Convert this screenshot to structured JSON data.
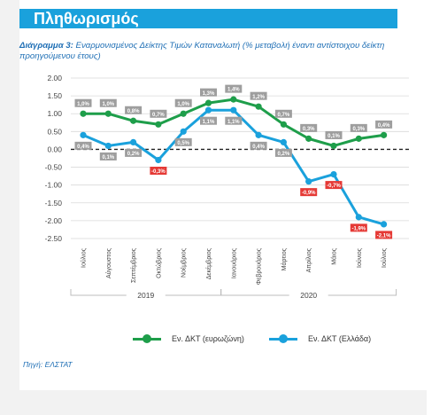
{
  "header": {
    "title": "Πληθωρισμός"
  },
  "subtitle": {
    "label": "Διάγραμμα 3:",
    "text": " Εναρμονισμένος Δείκτης Τιμών Καταναλωτή (% μεταβολή έναντι αντίστοιχου δείκτη προηγούμενου έτους)"
  },
  "source": "Πηγή: ΕΛΣΤΑΤ",
  "colors": {
    "eurozone": "#1e9e4a",
    "greece": "#1aa1dc",
    "negative_label": "#e53935",
    "label_box": "#9e9e9e"
  },
  "chart_data": {
    "type": "line",
    "categories": [
      "Ιούλιος",
      "Αύγουστος",
      "Σεπτέμβριος",
      "Οκτώβριος",
      "Νοέμβριος",
      "Δεκέμβριος",
      "Ιανουάριος",
      "Φεβρουάριος",
      "Μάρτιος",
      "Απρίλιος",
      "Μάιος",
      "Ιούνιος",
      "Ιούλιος"
    ],
    "year_groups": [
      {
        "label": "2019",
        "start": 0,
        "end": 5
      },
      {
        "label": "2020",
        "start": 6,
        "end": 12
      }
    ],
    "ylim": [
      -2.5,
      2.0
    ],
    "yticks": [
      "2.00",
      "1.50",
      "1.00",
      "0.50",
      "0.00",
      "-0.50",
      "-1.00",
      "-1.50",
      "-2.00",
      "-2.50"
    ],
    "ytick_values": [
      2.0,
      1.5,
      1.0,
      0.5,
      0.0,
      -0.5,
      -1.0,
      -1.5,
      -2.0,
      -2.5
    ],
    "series": [
      {
        "name": "Εν. ΔΚΤ (ευρωζώνη)",
        "values": [
          1.0,
          1.0,
          0.8,
          0.7,
          1.0,
          1.3,
          1.4,
          1.2,
          0.7,
          0.3,
          0.1,
          0.3,
          0.4
        ],
        "labels": [
          "1,0%",
          "1,0%",
          "0,8%",
          "0,7%",
          "1,0%",
          "1,3%",
          "1,4%",
          "1,2%",
          "0,7%",
          "0,3%",
          "0,1%",
          "0,3%",
          "0,4%"
        ]
      },
      {
        "name": "Εν. ΔΚΤ (Ελλάδα)",
        "values": [
          0.4,
          0.1,
          0.2,
          -0.3,
          0.5,
          1.1,
          1.1,
          0.4,
          0.2,
          -0.9,
          -0.7,
          -1.9,
          -2.1
        ],
        "labels": [
          "0,4%",
          "0,1%",
          "0,2%",
          "-0,3%",
          "0,5%",
          "1,1%",
          "1,1%",
          "0,4%",
          "0,2%",
          "-0,9%",
          "-0,7%",
          "-1,9%",
          "-2,1%"
        ]
      }
    ],
    "zero_line": "dashed",
    "grid": true,
    "legend_position": "bottom"
  }
}
